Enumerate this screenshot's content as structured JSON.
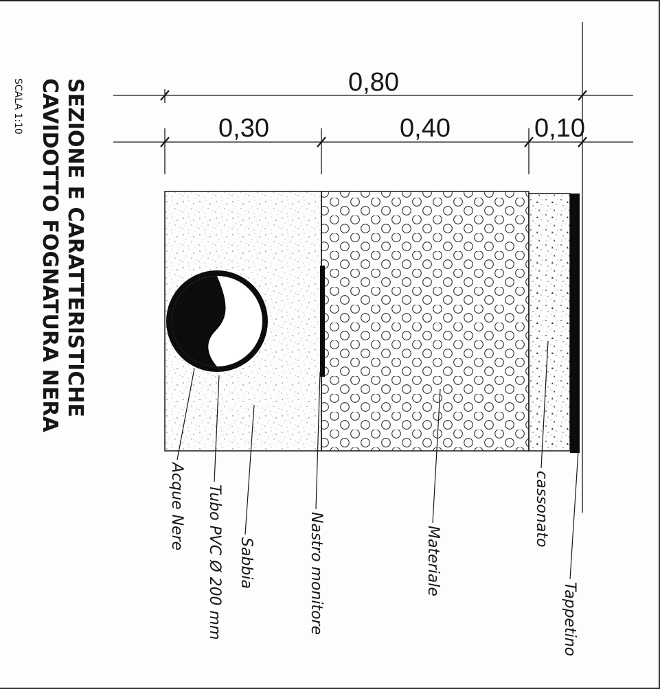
{
  "title": {
    "line1": "SEZIONE E CARATTERISTICHE",
    "line2": "CAVIDOTTO FOGNATURA NERA",
    "scale": "SCALA 1:10"
  },
  "dimensions": {
    "total": "0,80",
    "segments": [
      "0,30",
      "0,40",
      "0,10"
    ]
  },
  "labels": {
    "acque_nere": "Acque Nere",
    "tubo_pvc": "Tubo PVC Ø 200 mm",
    "sabbia": "Sabbia",
    "nastro_monitore": "Nastro monitore",
    "materiale": "Materiale",
    "cassonato": "cassonato",
    "tappetino": "Tappetino"
  },
  "colors": {
    "ink": "#161616",
    "paper": "#fdfdfb"
  }
}
